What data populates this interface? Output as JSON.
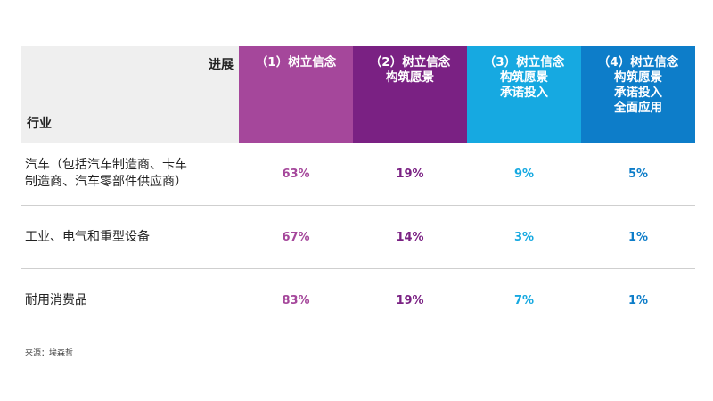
{
  "header": {
    "progress_label": "进展",
    "industry_label": "行业",
    "stages": [
      {
        "label": "（1）树立信念",
        "color": "#a5479b"
      },
      {
        "label": "（2）树立信念\n构筑愿景",
        "color": "#7a2183"
      },
      {
        "label": "（3）树立信念\n构筑愿景\n承诺投入",
        "color": "#16a9e1"
      },
      {
        "label": "（4）树立信念\n构筑愿景\n承诺投入\n全面应用",
        "color": "#0d7dc9"
      }
    ]
  },
  "rows": [
    {
      "industry": "汽车（包括汽车制造商、卡车\n制造商、汽车零部件供应商）",
      "values": [
        "63%",
        "19%",
        "9%",
        "5%"
      ]
    },
    {
      "industry": "工业、电气和重型设备",
      "values": [
        "67%",
        "14%",
        "3%",
        "1%"
      ]
    },
    {
      "industry": "耐用消费品",
      "values": [
        "83%",
        "19%",
        "7%",
        "1%"
      ]
    }
  ],
  "source": "来源：埃森哲"
}
